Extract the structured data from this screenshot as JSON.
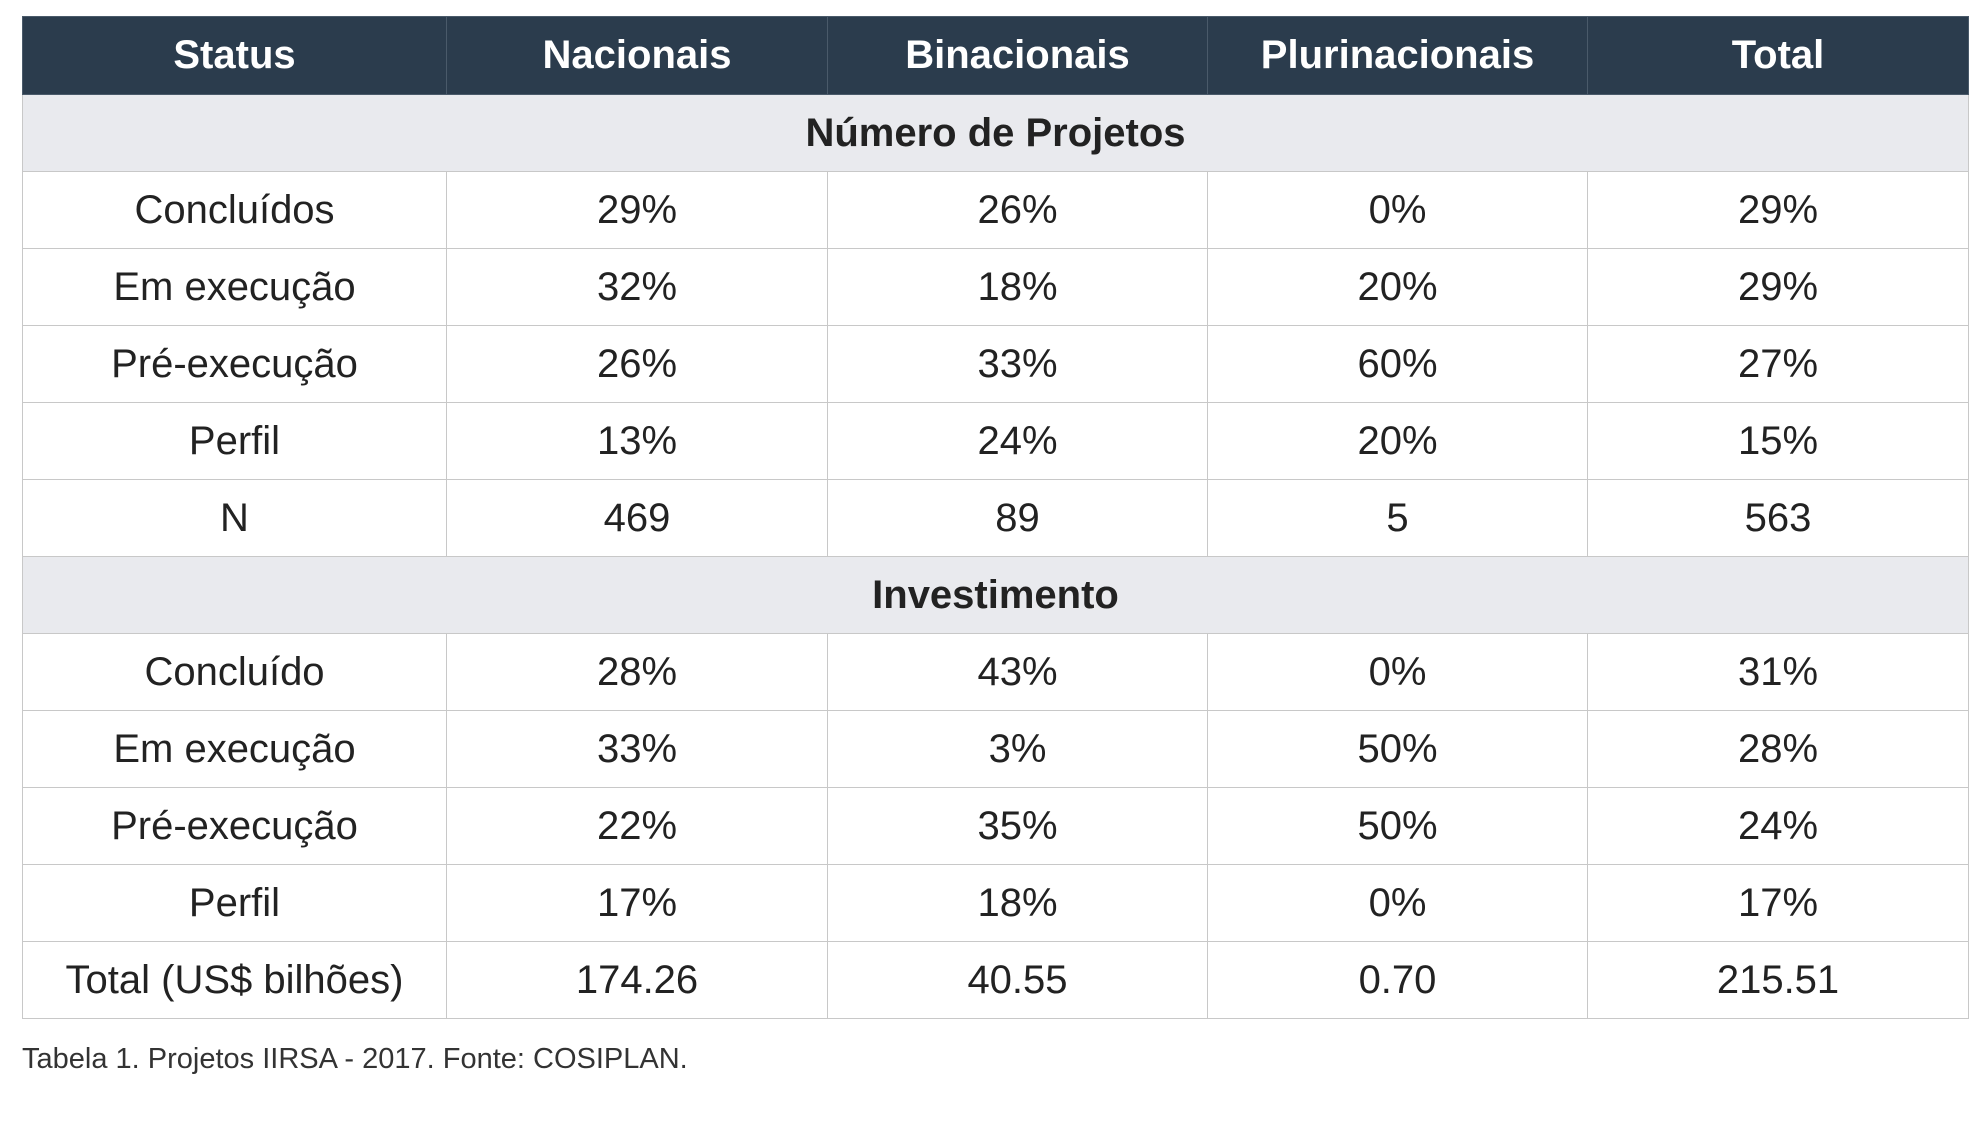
{
  "table": {
    "headers": [
      "Status",
      "Nacionais",
      "Binacionais",
      "Plurinacionais",
      "Total"
    ],
    "sections": [
      {
        "title": "Número de Projetos",
        "rows": [
          [
            "Concluídos",
            "29%",
            "26%",
            "0%",
            "29%"
          ],
          [
            "Em execução",
            "32%",
            "18%",
            "20%",
            "29%"
          ],
          [
            "Pré-execução",
            "26%",
            "33%",
            "60%",
            "27%"
          ],
          [
            "Perfil",
            "13%",
            "24%",
            "20%",
            "15%"
          ],
          [
            "N",
            "469",
            "89",
            "5",
            "563"
          ]
        ]
      },
      {
        "title": "Investimento",
        "rows": [
          [
            "Concluído",
            "28%",
            "43%",
            "0%",
            "31%"
          ],
          [
            "Em execução",
            "33%",
            "3%",
            "50%",
            "28%"
          ],
          [
            "Pré-execução",
            "22%",
            "35%",
            "50%",
            "24%"
          ],
          [
            "Perfil",
            "17%",
            "18%",
            "0%",
            "17%"
          ],
          [
            "Total (US$ bilhões)",
            "174.26",
            "40.55",
            "0.70",
            "215.51"
          ]
        ]
      }
    ]
  },
  "caption": "Tabela 1.  Projetos IIRSA - 2017. Fonte: COSIPLAN.",
  "colors": {
    "header_bg": "#2b3c4d",
    "section_bg": "#e9eaee"
  }
}
